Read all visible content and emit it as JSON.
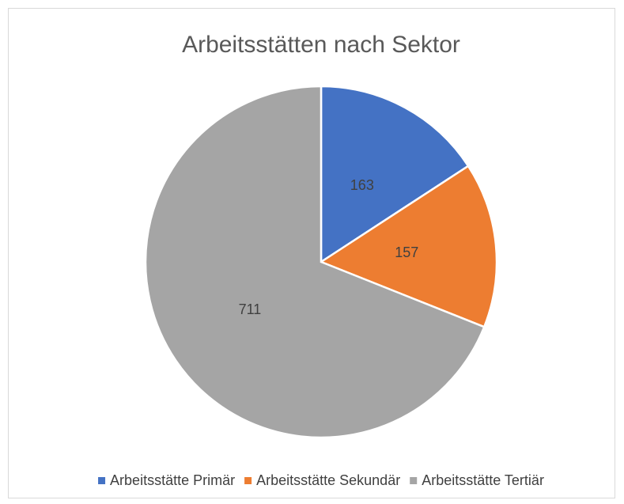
{
  "chart_data": {
    "type": "pie",
    "title": "Arbeitsstätten nach Sektor",
    "categories": [
      "Arbeitsstätte Primär",
      "Arbeitsstätte Sekundär",
      "Arbeitsstätte Tertiär"
    ],
    "values": [
      163,
      157,
      711
    ],
    "colors": [
      "#4472c4",
      "#ed7d31",
      "#a5a5a5"
    ],
    "legend": "bottom"
  }
}
